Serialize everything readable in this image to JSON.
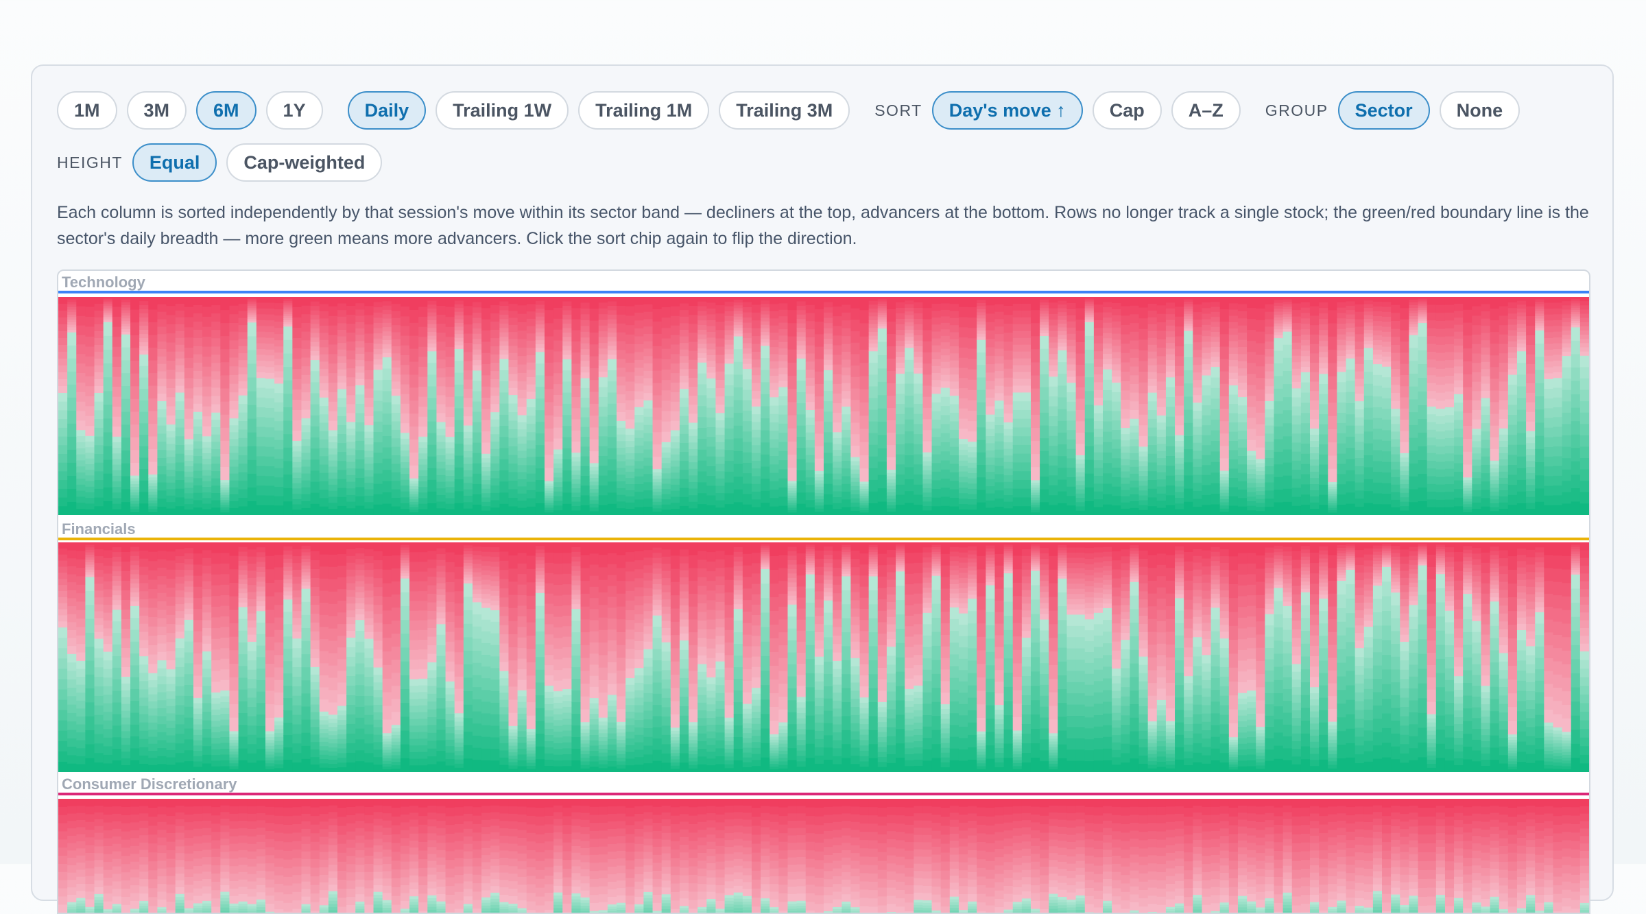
{
  "range_chips": [
    "1M",
    "3M",
    "6M",
    "1Y"
  ],
  "range_active": "6M",
  "window_chips": [
    "Daily",
    "Trailing 1W",
    "Trailing 1M",
    "Trailing 3M"
  ],
  "window_active": "Daily",
  "sort": {
    "label": "SORT",
    "chips": [
      "Day's move ↑",
      "Cap",
      "A–Z"
    ],
    "active": "Day's move ↑"
  },
  "group": {
    "label": "GROUP",
    "chips": [
      "Sector",
      "None"
    ],
    "active": "Sector"
  },
  "height": {
    "label": "HEIGHT",
    "chips": [
      "Equal",
      "Cap-weighted"
    ],
    "active": "Equal"
  },
  "description": "Each column is sorted independently by that session's move within its sector band — decliners at the top, advancers at the bottom. Rows no longer track a single stock; the green/red boundary line is the sector's daily breadth — more green means more advancers. Click the sort chip again to flip the direction.",
  "colors": {
    "accent": "#0f6fae",
    "decline": "#f03e5f",
    "advance": "#10b981",
    "technology": "#3b82f6",
    "financials": "#eab308",
    "consumer_discretionary": "#db2777"
  },
  "sectors": [
    {
      "name": "Technology",
      "color": "#3b82f6"
    },
    {
      "name": "Financials",
      "color": "#eab308"
    },
    {
      "name": "Consumer Discretionary",
      "color": "#db2777"
    }
  ]
}
